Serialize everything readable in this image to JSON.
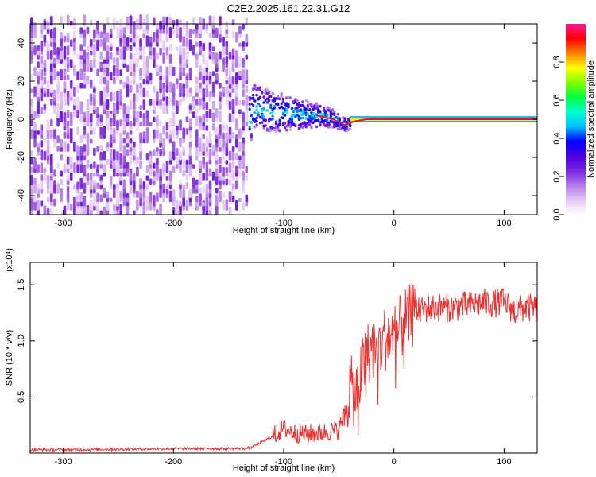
{
  "title": "C2E2.2025.161.22.31.G12",
  "chart_data": [
    {
      "type": "heatmap",
      "title": "C2E2.2025.161.22.31.G12",
      "xlabel": "Height of straight line (km)",
      "ylabel": "Frequency (Hz)",
      "xlim": [
        -330,
        130
      ],
      "ylim": [
        -50,
        50
      ],
      "xticks": [
        -300,
        -200,
        -100,
        0,
        100
      ],
      "yticks": [
        -40,
        -20,
        0,
        20,
        40
      ],
      "colorbar": {
        "label": "Normalized spectral amplitude",
        "range": [
          0,
          1
        ],
        "ticks": [
          0.0,
          0.2,
          0.4,
          0.6,
          0.8
        ],
        "tick_labels": [
          "0.0",
          "0.2",
          "0.4",
          "0.6",
          "0.8"
        ],
        "colors": [
          "#ffffff",
          "#e2c8f5",
          "#b27ae8",
          "#7a25e0",
          "#4b00e0",
          "#0000ff",
          "#00bfff",
          "#00ffd0",
          "#00ff40",
          "#80ff00",
          "#ffff00",
          "#ff8000",
          "#ff0000",
          "#ff1493"
        ]
      },
      "regions": [
        {
          "x_range": [
            -330,
            -132
          ],
          "description_level": "noise",
          "amplitude_range": [
            0.05,
            0.25
          ],
          "freq_range": [
            -50,
            50
          ]
        },
        {
          "x_range": [
            -132,
            -40
          ],
          "description_level": "scattered",
          "amplitude_range": [
            0.2,
            0.5
          ],
          "freq_range": [
            -12,
            14
          ]
        },
        {
          "x_range": [
            -40,
            130
          ],
          "description_level": "line",
          "amplitude_range": [
            0.9,
            1.0
          ],
          "freq_range": [
            -1,
            1
          ]
        }
      ],
      "ridge": {
        "x": [
          -130,
          -110,
          -90,
          -70,
          -55,
          -45,
          -35,
          -25,
          -10,
          0,
          130
        ],
        "y": [
          6,
          4,
          3,
          2,
          0,
          -3,
          -1,
          0,
          0,
          0,
          0
        ]
      },
      "grid": false,
      "legend": "colorbar-right"
    },
    {
      "type": "line",
      "title": "",
      "xlabel": "Height of straight line (km)",
      "ylabel": "SNR (10 * v/v)",
      "scale_label": "(x10⁴)",
      "xlim": [
        -330,
        130
      ],
      "ylim": [
        0,
        17000
      ],
      "xticks": [
        -300,
        -200,
        -100,
        0,
        100
      ],
      "yticks": [
        5000,
        10000,
        15000
      ],
      "ytick_labels": [
        "0.5",
        "1.0",
        "1.5"
      ],
      "series": [
        {
          "color": "#ee3030",
          "x": [
            -330,
            -300,
            -250,
            -200,
            -150,
            -130,
            -110,
            -100,
            -90,
            -80,
            -70,
            -60,
            -50,
            -45,
            -40,
            -35,
            -30,
            -25,
            -20,
            -15,
            -10,
            -5,
            0,
            10,
            20,
            30,
            40,
            50,
            60,
            70,
            80,
            90,
            100,
            110,
            120,
            130
          ],
          "y": [
            300,
            300,
            350,
            400,
            400,
            450,
            1500,
            2200,
            1800,
            1700,
            1800,
            1900,
            2100,
            3500,
            6000,
            5000,
            7000,
            8500,
            9500,
            9000,
            10000,
            10500,
            10200,
            11800,
            12500,
            12900,
            13000,
            12900,
            13100,
            13200,
            13400,
            13300,
            13500,
            12600,
            13000,
            12800
          ]
        }
      ],
      "grid": false
    }
  ]
}
